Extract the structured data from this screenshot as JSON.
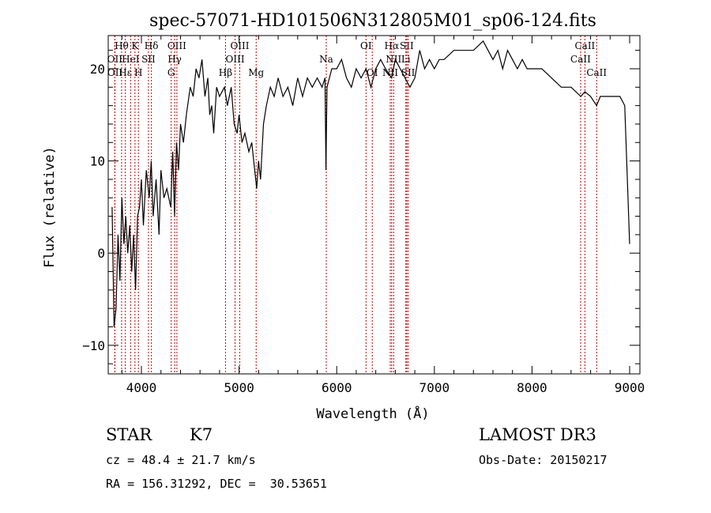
{
  "chart_data": {
    "type": "line",
    "title": "spec-57071-HD101506N312805M01_sp06-124.fits",
    "xlabel": "Wavelength (Å)",
    "ylabel": "Flux (relative)",
    "xlim": [
      3660,
      9105
    ],
    "ylim": [
      -13.1,
      23.6
    ],
    "x_ticks": [
      4000,
      5000,
      6000,
      7000,
      8000,
      9000
    ],
    "x_tick_labels": [
      "4000",
      "5000",
      "6000",
      "7000",
      "8000",
      "9000"
    ],
    "y_ticks": [
      -10,
      0,
      10,
      20
    ],
    "y_tick_labels": [
      "−10",
      "0",
      "10",
      "20"
    ],
    "grid": false,
    "series": [
      {
        "name": "spectrum",
        "color": "#000000",
        "x": [
          3700,
          3720,
          3740,
          3760,
          3780,
          3800,
          3820,
          3840,
          3860,
          3880,
          3900,
          3920,
          3940,
          3960,
          3980,
          4000,
          4020,
          4050,
          4080,
          4100,
          4120,
          4150,
          4180,
          4200,
          4230,
          4260,
          4300,
          4320,
          4340,
          4360,
          4380,
          4400,
          4430,
          4460,
          4500,
          4530,
          4560,
          4590,
          4620,
          4650,
          4680,
          4700,
          4720,
          4740,
          4770,
          4800,
          4850,
          4880,
          4920,
          4950,
          4980,
          5000,
          5030,
          5060,
          5100,
          5130,
          5160,
          5180,
          5200,
          5220,
          5250,
          5280,
          5320,
          5360,
          5400,
          5450,
          5500,
          5550,
          5600,
          5650,
          5700,
          5750,
          5800,
          5850,
          5880,
          5890,
          5900,
          5950,
          6000,
          6050,
          6100,
          6150,
          6200,
          6250,
          6300,
          6350,
          6400,
          6450,
          6500,
          6562,
          6600,
          6650,
          6700,
          6750,
          6800,
          6850,
          6900,
          6950,
          7000,
          7050,
          7100,
          7200,
          7300,
          7400,
          7500,
          7550,
          7600,
          7650,
          7700,
          7750,
          7800,
          7850,
          7900,
          7950,
          8000,
          8100,
          8200,
          8300,
          8400,
          8500,
          8542,
          8600,
          8662,
          8700,
          8800,
          8900,
          8950,
          9000
        ],
        "y": [
          5,
          -8,
          -6,
          2,
          -3,
          6,
          1,
          4,
          0,
          3,
          -2,
          2,
          -4,
          4,
          5,
          8,
          3,
          9,
          6,
          10,
          4,
          8,
          2,
          9,
          6,
          7,
          5,
          11,
          4,
          12,
          9,
          14,
          12,
          15,
          18,
          17,
          20,
          19,
          21,
          17,
          19,
          15,
          16,
          13,
          18,
          17,
          18,
          16,
          18,
          14,
          13,
          15,
          12,
          13,
          11,
          12,
          9,
          7,
          10,
          8,
          14,
          16,
          18,
          17,
          19,
          17,
          18,
          16,
          19,
          17,
          19,
          18,
          19,
          18,
          19,
          9,
          18,
          20,
          20,
          21,
          19,
          18,
          20,
          19,
          20,
          18,
          20,
          21,
          20,
          19,
          21,
          20,
          19,
          18,
          19,
          22,
          20,
          21,
          20,
          21,
          21,
          22,
          22,
          22,
          23,
          22,
          21,
          22,
          20,
          22,
          21,
          20,
          21,
          20,
          20,
          20,
          19,
          18,
          18,
          17,
          17.5,
          17,
          16,
          17,
          17,
          17,
          16,
          1
        ]
      }
    ],
    "line_markers": {
      "color": "#cc0000",
      "items": [
        {
          "label": "Hθ",
          "wavelength": 3797,
          "row": 0
        },
        {
          "label": "K",
          "wavelength": 3934,
          "row": 0
        },
        {
          "label": "Hδ",
          "wavelength": 4102,
          "row": 0
        },
        {
          "label": "OIII",
          "wavelength": 4363,
          "row": 0
        },
        {
          "label": "OIII",
          "wavelength": 5007,
          "row": 0
        },
        {
          "label": "OI",
          "wavelength": 6300,
          "row": 0
        },
        {
          "label": "Hα",
          "wavelength": 6563,
          "row": 0
        },
        {
          "label": "SII",
          "wavelength": 6717,
          "row": 0
        },
        {
          "label": "CaII",
          "wavelength": 8542,
          "row": 0
        },
        {
          "label": "OII",
          "wavelength": 3727,
          "row": 1
        },
        {
          "label": "HeI",
          "wavelength": 3889,
          "row": 1
        },
        {
          "label": "SII",
          "wavelength": 4072,
          "row": 1
        },
        {
          "label": "Hγ",
          "wavelength": 4340,
          "row": 1
        },
        {
          "label": "OIII",
          "wavelength": 4959,
          "row": 1
        },
        {
          "label": "Na",
          "wavelength": 5893,
          "row": 1
        },
        {
          "label": "NII",
          "wavelength": 6583,
          "row": 1
        },
        {
          "label": "Li",
          "wavelength": 6708,
          "row": 1
        },
        {
          "label": "CaII",
          "wavelength": 8498,
          "row": 1
        },
        {
          "label": "OII",
          "wavelength": 3729,
          "row": 2
        },
        {
          "label": "Hε",
          "wavelength": 3835,
          "row": 2
        },
        {
          "label": "H",
          "wavelength": 3969,
          "row": 2
        },
        {
          "label": "G",
          "wavelength": 4305,
          "row": 2
        },
        {
          "label": "Hβ",
          "wavelength": 4861,
          "row": 2
        },
        {
          "label": "Mg",
          "wavelength": 5175,
          "row": 2
        },
        {
          "label": "OI",
          "wavelength": 6364,
          "row": 2
        },
        {
          "label": "NII",
          "wavelength": 6548,
          "row": 2
        },
        {
          "label": "SII",
          "wavelength": 6731,
          "row": 2
        },
        {
          "label": "CaII",
          "wavelength": 8662,
          "row": 2
        }
      ]
    }
  },
  "info": {
    "object_class": "STAR",
    "subclass": "K7",
    "redshift": "cz = 48.4 ± 21.7 km/s",
    "coords": "RA = 156.31292, DEC =  30.53651",
    "survey": "LAMOST DR3",
    "obs_date": "Obs-Date: 20150217"
  }
}
